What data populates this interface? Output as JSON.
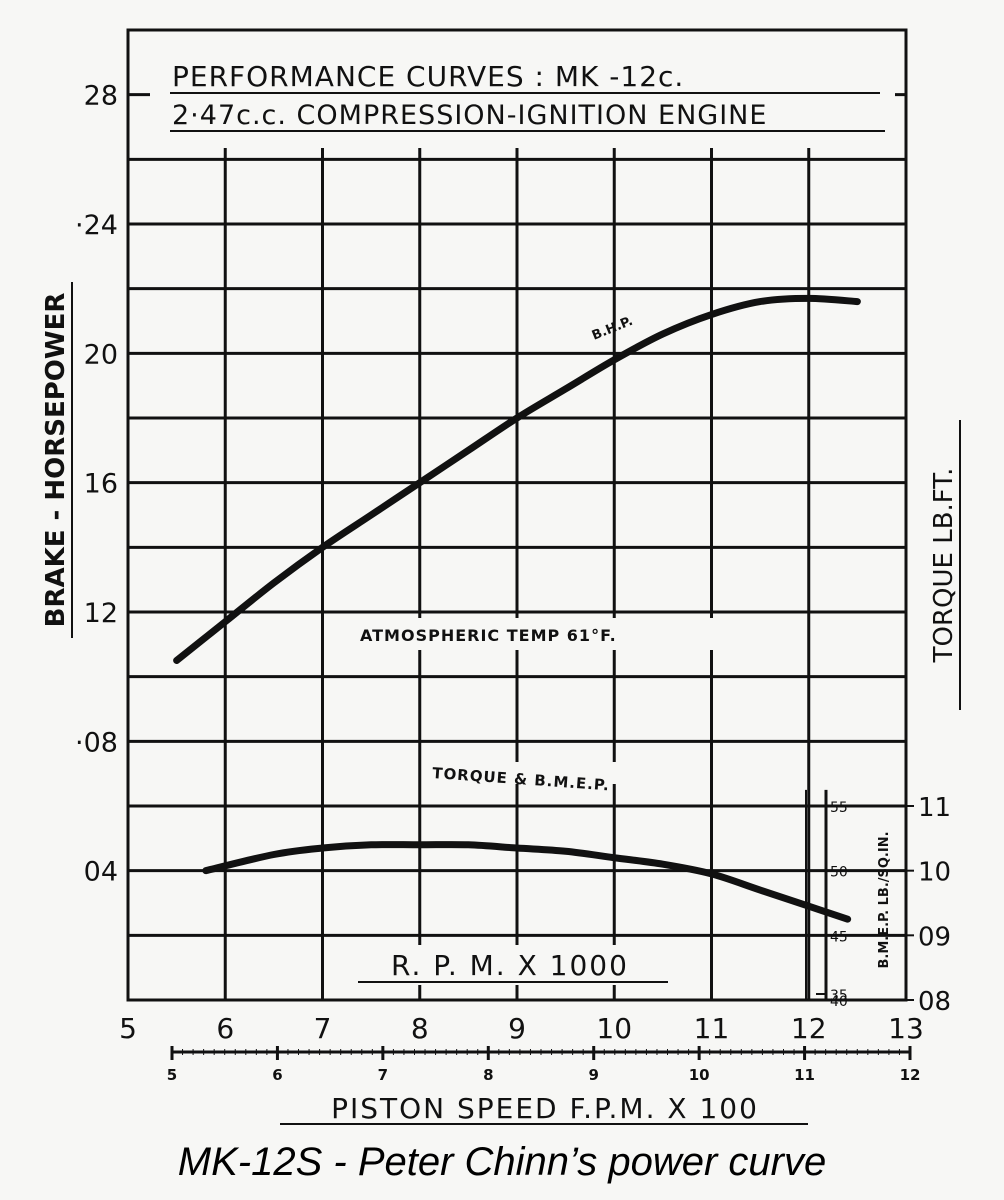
{
  "chart_data": {
    "type": "line",
    "title_line1": "PERFORMANCE  CURVES :  MK -12c.",
    "title_line2": "2·47c.c.  COMPRESSION-IGNITION  ENGINE",
    "ylabel": "BRAKE - HORSEPOWER",
    "right_label": "TORQUE  LB.FT.",
    "bmep_label": "B.M.E.P.  LB./SQ.IN.",
    "xlabel_rpm": "R. P. M.  X  1000",
    "xlabel_piston": "PISTON  SPEED  F.P.M. X 100",
    "annotation_temp": "ATMOSPHERIC  TEMP  61°F.",
    "xlim": [
      5,
      13
    ],
    "ylim": [
      0,
      0.3
    ],
    "x_ticks": [
      "5",
      "6",
      "7",
      "8",
      "9",
      "10",
      "11",
      "12",
      "13"
    ],
    "y_ticks": [
      {
        "label": "28",
        "value": 0.28
      },
      {
        "label": "·24",
        "value": 0.24
      },
      {
        "label": "20",
        "value": 0.2
      },
      {
        "label": "16",
        "value": 0.16
      },
      {
        "label": "12",
        "value": 0.12
      },
      {
        "label": "·08",
        "value": 0.08
      },
      {
        "label": "04",
        "value": 0.04
      }
    ],
    "torque_ticks": [
      {
        "label": "11",
        "value": 0.06
      },
      {
        "label": "10",
        "value": 0.04
      },
      {
        "label": "09",
        "value": 0.02
      },
      {
        "label": "08",
        "value": 0.0
      }
    ],
    "bmep_ticks": [
      {
        "label": "55",
        "value": 0.06
      },
      {
        "label": "50",
        "value": 0.04
      },
      {
        "label": "45",
        "value": 0.02
      },
      {
        "label": "40",
        "value": 0.0
      },
      {
        "label": "35",
        "value": -0.02
      }
    ],
    "piston_ticks": [
      "5",
      "6",
      "7",
      "8",
      "9",
      "10",
      "11",
      "12"
    ],
    "series": [
      {
        "name": "B.H.P.",
        "x": [
          5.5,
          6.0,
          6.5,
          7.0,
          7.5,
          8.0,
          8.5,
          9.0,
          9.5,
          10.0,
          10.5,
          11.0,
          11.5,
          12.0,
          12.5
        ],
        "y": [
          0.105,
          0.117,
          0.129,
          0.14,
          0.15,
          0.16,
          0.17,
          0.18,
          0.189,
          0.198,
          0.206,
          0.212,
          0.216,
          0.217,
          0.216
        ]
      },
      {
        "name": "TORQUE  &  B.M.E.P.",
        "x": [
          5.8,
          6.5,
          7.0,
          7.5,
          8.0,
          8.5,
          9.0,
          9.5,
          10.0,
          10.5,
          11.0,
          11.5,
          12.0,
          12.4
        ],
        "y": [
          0.04,
          0.045,
          0.047,
          0.048,
          0.048,
          0.048,
          0.047,
          0.046,
          0.044,
          0.042,
          0.039,
          0.034,
          0.029,
          0.025
        ]
      }
    ]
  },
  "caption": "MK-12S - Peter Chinn’s power curve"
}
